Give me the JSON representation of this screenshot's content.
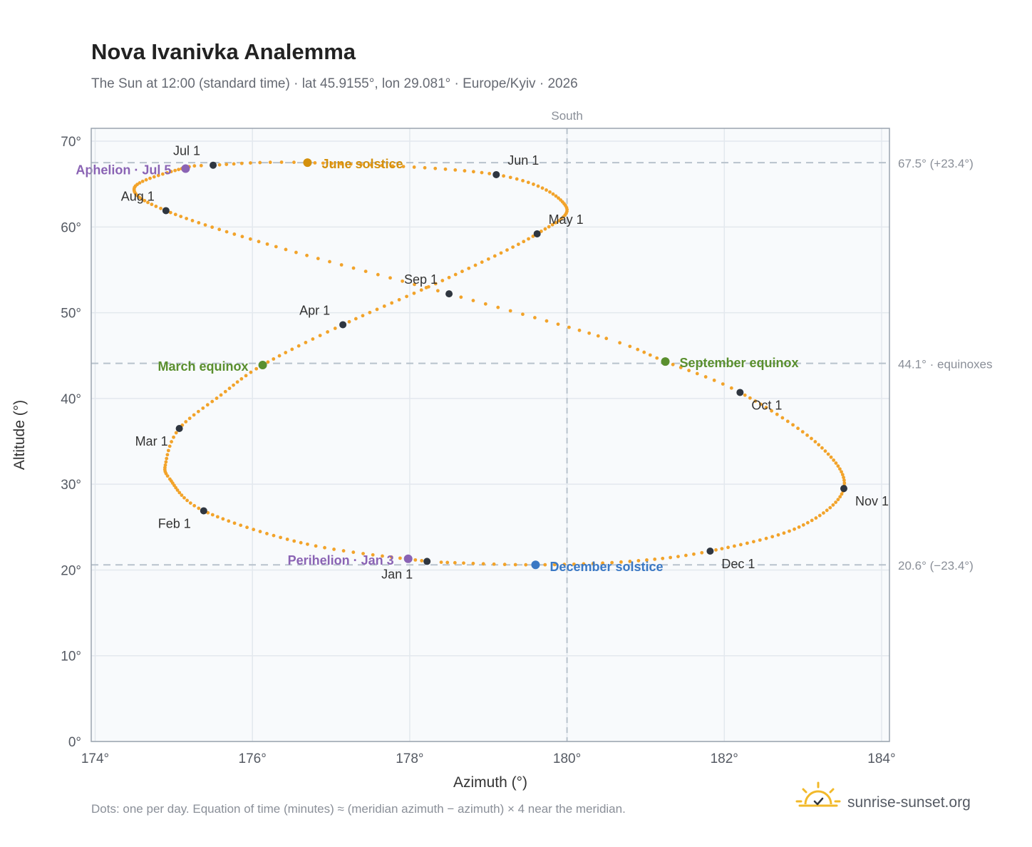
{
  "header": {
    "title": "Nova Ivanivka Analemma",
    "subtitle": "The Sun at 12:00 (standard time) · lat 45.9155°, lon 29.081° · Europe/Kyiv · 2026"
  },
  "footer": {
    "note": "Dots: one per day. Equation of time (minutes) ≈ (meridian azimuth − azimuth) × 4 near the meridian.",
    "brand": "sunrise-sunset.org"
  },
  "colors": {
    "curve": "#f2a32a",
    "month_marker": "#2f3640",
    "june_solstice": "#d4900c",
    "december_solstice": "#3a78c4",
    "equinox": "#5a8f2e",
    "apsis": "#8a63b4",
    "plot_background": "#f8fafc",
    "grid": "#e3e8ee",
    "reference_line": "#b8c2cc"
  },
  "chart_data": {
    "type": "scatter",
    "xlabel": "Azimuth (°)",
    "ylabel": "Altitude (°)",
    "xlim": [
      173.95,
      184.1
    ],
    "ylim": [
      0,
      71.5
    ],
    "x_ticks": [
      174,
      176,
      178,
      180,
      182,
      184
    ],
    "x_tick_labels": [
      "174°",
      "176°",
      "178°",
      "180°",
      "182°",
      "184°"
    ],
    "y_ticks": [
      0,
      10,
      20,
      30,
      40,
      50,
      60,
      70
    ],
    "y_tick_labels": [
      "0°",
      "10°",
      "20°",
      "30°",
      "40°",
      "50°",
      "60°",
      "70°"
    ],
    "grid": true,
    "meridian": {
      "azimuth": 180,
      "label": "South"
    },
    "reference_lines": [
      {
        "altitude": 67.5,
        "label": "67.5° (+23.4°)"
      },
      {
        "altitude": 44.1,
        "label": "44.1° · equinoxes"
      },
      {
        "altitude": 20.6,
        "label": "20.6° (−23.4°)"
      }
    ],
    "analemma_keypoints": [
      {
        "day": 1,
        "az": 178.22,
        "alt": 21.0
      },
      {
        "day": 15,
        "az": 176.7,
        "alt": 23.0
      },
      {
        "day": 32,
        "az": 175.38,
        "alt": 26.9
      },
      {
        "day": 45,
        "az": 174.95,
        "alt": 30.6
      },
      {
        "day": 52,
        "az": 174.9,
        "alt": 32.6
      },
      {
        "day": 60,
        "az": 175.07,
        "alt": 36.5
      },
      {
        "day": 70,
        "az": 175.6,
        "alt": 40.4
      },
      {
        "day": 79,
        "az": 176.13,
        "alt": 43.9
      },
      {
        "day": 91,
        "az": 177.15,
        "alt": 48.6
      },
      {
        "day": 106,
        "az": 178.5,
        "alt": 54.1
      },
      {
        "day": 121,
        "az": 179.62,
        "alt": 59.2
      },
      {
        "day": 135,
        "az": 179.98,
        "alt": 62.5
      },
      {
        "day": 152,
        "az": 179.1,
        "alt": 66.1
      },
      {
        "day": 172,
        "az": 176.7,
        "alt": 67.5
      },
      {
        "day": 182,
        "az": 175.5,
        "alt": 67.2
      },
      {
        "day": 186,
        "az": 175.1,
        "alt": 66.8
      },
      {
        "day": 200,
        "az": 174.5,
        "alt": 64.6
      },
      {
        "day": 213,
        "az": 174.9,
        "alt": 61.9
      },
      {
        "day": 229,
        "az": 176.3,
        "alt": 57.7
      },
      {
        "day": 244,
        "az": 178.5,
        "alt": 52.2
      },
      {
        "day": 258,
        "az": 180.5,
        "alt": 47.0
      },
      {
        "day": 265,
        "az": 181.25,
        "alt": 44.3
      },
      {
        "day": 274,
        "az": 182.2,
        "alt": 40.7
      },
      {
        "day": 290,
        "az": 183.2,
        "alt": 34.6
      },
      {
        "day": 305,
        "az": 183.52,
        "alt": 29.5
      },
      {
        "day": 320,
        "az": 182.95,
        "alt": 25.0
      },
      {
        "day": 335,
        "az": 181.82,
        "alt": 22.2
      },
      {
        "day": 345,
        "az": 180.8,
        "alt": 21.0
      },
      {
        "day": 355,
        "az": 179.6,
        "alt": 20.6
      },
      {
        "day": 365,
        "az": 178.4,
        "alt": 20.9
      }
    ],
    "month_markers": [
      {
        "label": "Jan 1",
        "az": 178.22,
        "alt": 21.0,
        "anchor": "middle",
        "dx": -42,
        "dy": 24
      },
      {
        "label": "Feb 1",
        "az": 175.38,
        "alt": 26.9,
        "anchor": "end",
        "dx": -18,
        "dy": 24
      },
      {
        "label": "Mar 1",
        "az": 175.07,
        "alt": 36.5,
        "anchor": "end",
        "dx": -16,
        "dy": 24
      },
      {
        "label": "Apr 1",
        "az": 177.15,
        "alt": 48.6,
        "anchor": "end",
        "dx": -18,
        "dy": -14
      },
      {
        "label": "May 1",
        "az": 179.62,
        "alt": 59.2,
        "anchor": "start",
        "dx": 16,
        "dy": -14
      },
      {
        "label": "Jun 1",
        "az": 179.1,
        "alt": 66.1,
        "anchor": "start",
        "dx": 16,
        "dy": -14
      },
      {
        "label": "Jul 1",
        "az": 175.5,
        "alt": 67.2,
        "anchor": "end",
        "dx": -18,
        "dy": -14
      },
      {
        "label": "Aug 1",
        "az": 174.9,
        "alt": 61.9,
        "anchor": "end",
        "dx": -16,
        "dy": -14
      },
      {
        "label": "Sep 1",
        "az": 178.5,
        "alt": 52.2,
        "anchor": "end",
        "dx": -16,
        "dy": -14
      },
      {
        "label": "Oct 1",
        "az": 182.2,
        "alt": 40.7,
        "anchor": "start",
        "dx": 16,
        "dy": 24
      },
      {
        "label": "Nov 1",
        "az": 183.52,
        "alt": 29.5,
        "anchor": "start",
        "dx": 16,
        "dy": 24
      },
      {
        "label": "Dec 1",
        "az": 181.82,
        "alt": 22.2,
        "anchor": "start",
        "dx": 16,
        "dy": 24
      }
    ],
    "events": [
      {
        "label": "June solstice",
        "az": 176.7,
        "alt": 67.5,
        "color": "#d4900c",
        "anchor": "start",
        "dx": 20,
        "dy": 8
      },
      {
        "label": "December solstice",
        "az": 179.6,
        "alt": 20.6,
        "color": "#3a78c4",
        "anchor": "start",
        "dx": 20,
        "dy": 9
      },
      {
        "label": "March equinox",
        "az": 176.13,
        "alt": 43.9,
        "color": "#5a8f2e",
        "anchor": "end",
        "dx": -20,
        "dy": 8
      },
      {
        "label": "September equinox",
        "az": 181.25,
        "alt": 44.3,
        "color": "#5a8f2e",
        "anchor": "start",
        "dx": 20,
        "dy": 8
      },
      {
        "label": "Aphelion · Jul 5",
        "az": 175.15,
        "alt": 66.8,
        "color": "#8a63b4",
        "anchor": "end",
        "dx": -20,
        "dy": 8
      },
      {
        "label": "Perihelion · Jan 3",
        "az": 177.98,
        "alt": 21.3,
        "color": "#8a63b4",
        "anchor": "end",
        "dx": -20,
        "dy": 8
      }
    ]
  }
}
